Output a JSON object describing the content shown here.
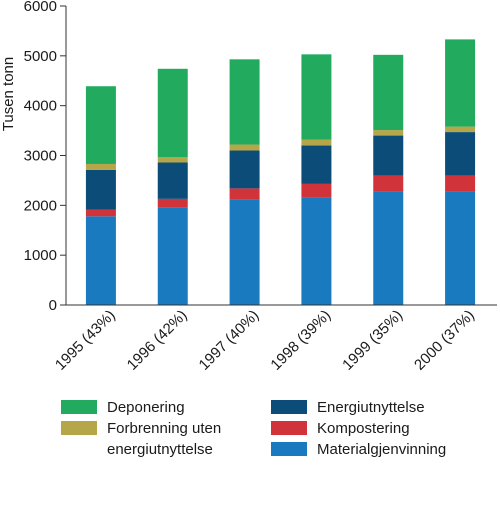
{
  "chart_data": {
    "type": "bar",
    "stacked": true,
    "title": "",
    "xlabel": "",
    "ylabel": "Tusen tonn",
    "ylim": [
      0,
      6000
    ],
    "yticks": [
      0,
      1000,
      2000,
      3000,
      4000,
      5000,
      6000
    ],
    "grid": false,
    "legend_position": "bottom",
    "categories": [
      "1995 (43%)",
      "1996 (42%)",
      "1997 (40%)",
      "1998 (39%)",
      "1999 (35%)",
      "2000 (37%)"
    ],
    "series": [
      {
        "name": "Materialgjenvinning",
        "color": "#1a7abf",
        "values": [
          1780,
          1950,
          2110,
          2160,
          2280,
          2270
        ]
      },
      {
        "name": "Kompostering",
        "color": "#d1333b",
        "values": [
          130,
          180,
          230,
          270,
          320,
          330
        ]
      },
      {
        "name": "Energiutnyttelse",
        "color": "#0b4d78",
        "values": [
          800,
          730,
          760,
          770,
          800,
          870
        ]
      },
      {
        "name": "Forbrenning uten energiutnyttelse",
        "color": "#b5a64a",
        "values": [
          120,
          110,
          120,
          120,
          110,
          110
        ]
      },
      {
        "name": "Deponering",
        "color": "#22ab5f",
        "values": [
          1560,
          1770,
          1710,
          1710,
          1510,
          1750
        ]
      }
    ],
    "legend": {
      "left": [
        {
          "series": "Deponering",
          "lines": [
            "Deponering"
          ]
        },
        {
          "series": "Forbrenning uten energiutnyttelse",
          "lines": [
            "Forbrenning uten",
            "energiutnyttelse"
          ]
        }
      ],
      "right": [
        {
          "series": "Energiutnyttelse",
          "lines": [
            "Energiutnyttelse"
          ]
        },
        {
          "series": "Kompostering",
          "lines": [
            "Kompostering"
          ]
        },
        {
          "series": "Materialgjenvinning",
          "lines": [
            "Materialgjenvinning"
          ]
        }
      ]
    }
  }
}
